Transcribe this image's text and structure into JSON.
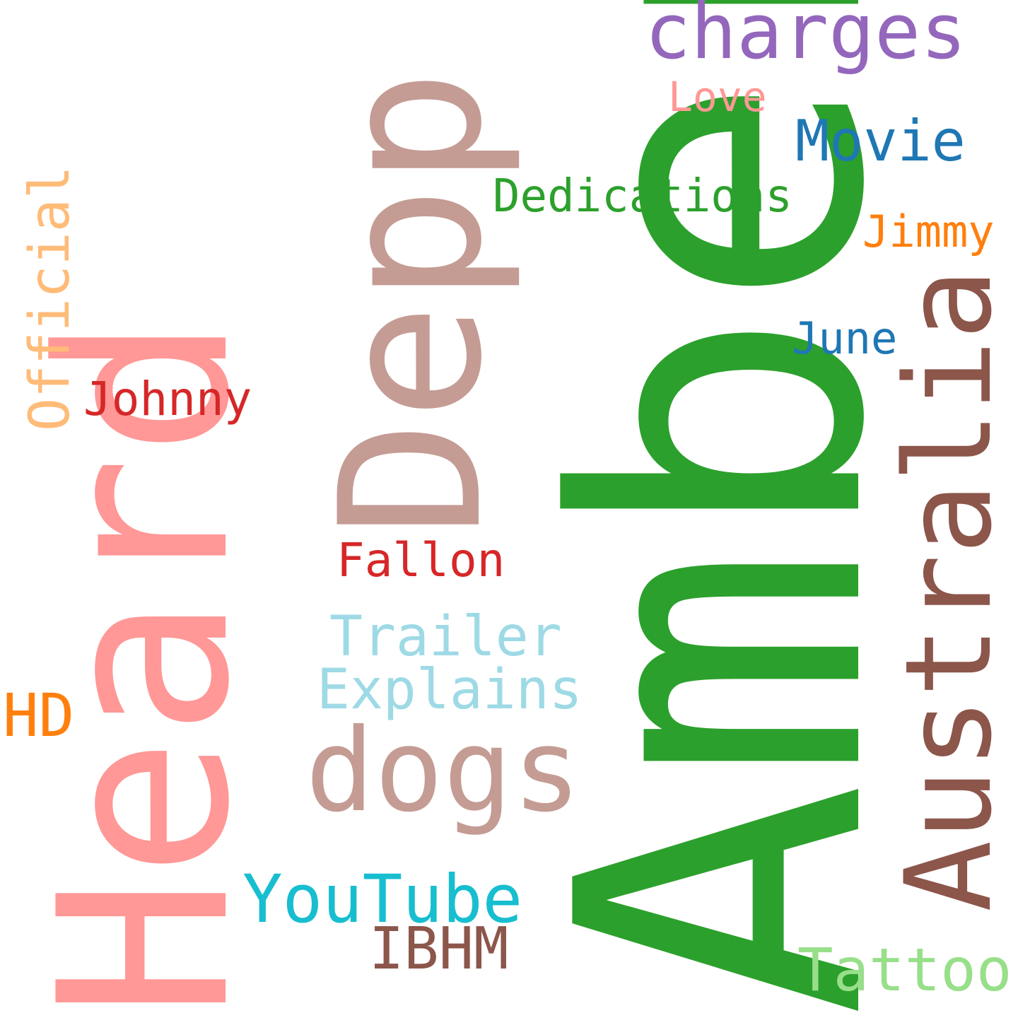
{
  "words": {
    "heard": {
      "text": "Heard",
      "color": "#ff9896"
    },
    "amber": {
      "text": "Amber",
      "color": "#2ca02c"
    },
    "depp": {
      "text": "Depp",
      "color": "#c49c94"
    },
    "australia": {
      "text": "Australia",
      "color": "#8c564b"
    },
    "official": {
      "text": "Official",
      "color": "#ffbb78"
    },
    "charges": {
      "text": "charges",
      "color": "#9467bd"
    },
    "love": {
      "text": "Love",
      "color": "#ff9896"
    },
    "movie": {
      "text": "Movie",
      "color": "#1f77b4"
    },
    "dedications": {
      "text": "Dedications",
      "color": "#2ca02c"
    },
    "jimmy": {
      "text": "Jimmy",
      "color": "#ff7f0e"
    },
    "june": {
      "text": "June",
      "color": "#1f77b4"
    },
    "johnny": {
      "text": "Johnny",
      "color": "#d62728"
    },
    "fallon": {
      "text": "Fallon",
      "color": "#d62728"
    },
    "trailer": {
      "text": "Trailer",
      "color": "#9edae5"
    },
    "explains": {
      "text": "Explains",
      "color": "#9edae5"
    },
    "hd": {
      "text": "HD",
      "color": "#ff7f0e"
    },
    "dogs": {
      "text": "dogs",
      "color": "#c49c94"
    },
    "youtube": {
      "text": "YouTube",
      "color": "#17becf"
    },
    "ibhm": {
      "text": "IBHM",
      "color": "#8c564b"
    },
    "tattoo": {
      "text": "Tattoo",
      "color": "#98df8a"
    }
  }
}
